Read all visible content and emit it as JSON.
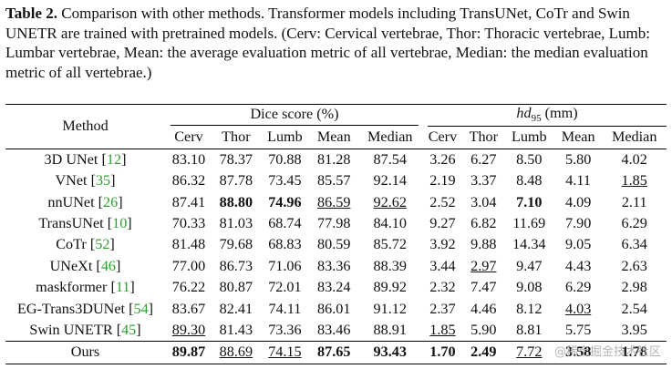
{
  "caption": {
    "label": "Table 2.",
    "text": " Comparison with other methods. Transformer models including TransUNet, CoTr and Swin UNETR are trained with pretrained models. (Cerv: Cervical vertebrae, Thor: Thoracic vertebrae, Lumb: Lumbar vertebrae, Mean: the average evaluation metric of all vertebrae, Median: the median evaluation metric of all vertebrae.)"
  },
  "table": {
    "method_header": "Method",
    "dice_header": "Dice score (%)",
    "hd_header_main": "hd",
    "hd_header_sub": "95",
    "hd_header_unit": " (mm)",
    "sub_headers": [
      "Cerv",
      "Thor",
      "Lumb",
      "Mean",
      "Median",
      "Cerv",
      "Thor",
      "Lumb",
      "Mean",
      "Median"
    ],
    "rows": [
      {
        "name": "3D UNet",
        "ref": "12",
        "values": [
          "83.10",
          "78.37",
          "70.88",
          "81.28",
          "87.54",
          "3.26",
          "6.27",
          "8.50",
          "5.80",
          "4.02"
        ]
      },
      {
        "name": "VNet",
        "ref": "35",
        "values": [
          "86.32",
          "87.78",
          "73.45",
          "85.57",
          "92.14",
          "2.19",
          "3.37",
          "8.48",
          "4.11",
          "1.85"
        ]
      },
      {
        "name": "nnUNet",
        "ref": "26",
        "values": [
          "87.41",
          "88.80",
          "74.96",
          "86.59",
          "92.62",
          "2.52",
          "3.04",
          "7.10",
          "4.09",
          "2.11"
        ]
      },
      {
        "name": "TransUNet",
        "ref": "10",
        "values": [
          "70.33",
          "81.03",
          "68.74",
          "77.98",
          "84.10",
          "9.27",
          "6.82",
          "11.69",
          "7.90",
          "6.29"
        ]
      },
      {
        "name": "CoTr",
        "ref": "52",
        "values": [
          "81.48",
          "79.68",
          "68.83",
          "80.59",
          "85.72",
          "3.92",
          "9.88",
          "14.34",
          "9.05",
          "6.34"
        ]
      },
      {
        "name": "UNeXt",
        "ref": "46",
        "values": [
          "77.00",
          "86.73",
          "71.06",
          "83.36",
          "88.39",
          "3.44",
          "2.97",
          "9.47",
          "4.43",
          "2.63"
        ]
      },
      {
        "name": "maskformer",
        "ref": "11",
        "values": [
          "76.22",
          "80.87",
          "72.01",
          "83.24",
          "89.92",
          "2.32",
          "7.47",
          "9.08",
          "6.29",
          "2.98"
        ]
      },
      {
        "name": "EG-Trans3DUNet",
        "ref": "54",
        "values": [
          "83.67",
          "82.41",
          "74.11",
          "86.01",
          "91.12",
          "2.37",
          "4.46",
          "8.12",
          "4.03",
          "2.54"
        ]
      },
      {
        "name": "Swin UNETR",
        "ref": "45",
        "values": [
          "89.30",
          "81.43",
          "73.36",
          "83.46",
          "88.91",
          "1.85",
          "5.90",
          "8.81",
          "5.75",
          "3.95"
        ]
      },
      {
        "name": "Ours",
        "ref": "",
        "values": [
          "89.87",
          "88.69",
          "74.15",
          "87.65",
          "93.43",
          "1.70",
          "2.49",
          "7.72",
          "3.58",
          "1.78"
        ]
      }
    ]
  },
  "watermark": "@稀土掘金技术社区"
}
